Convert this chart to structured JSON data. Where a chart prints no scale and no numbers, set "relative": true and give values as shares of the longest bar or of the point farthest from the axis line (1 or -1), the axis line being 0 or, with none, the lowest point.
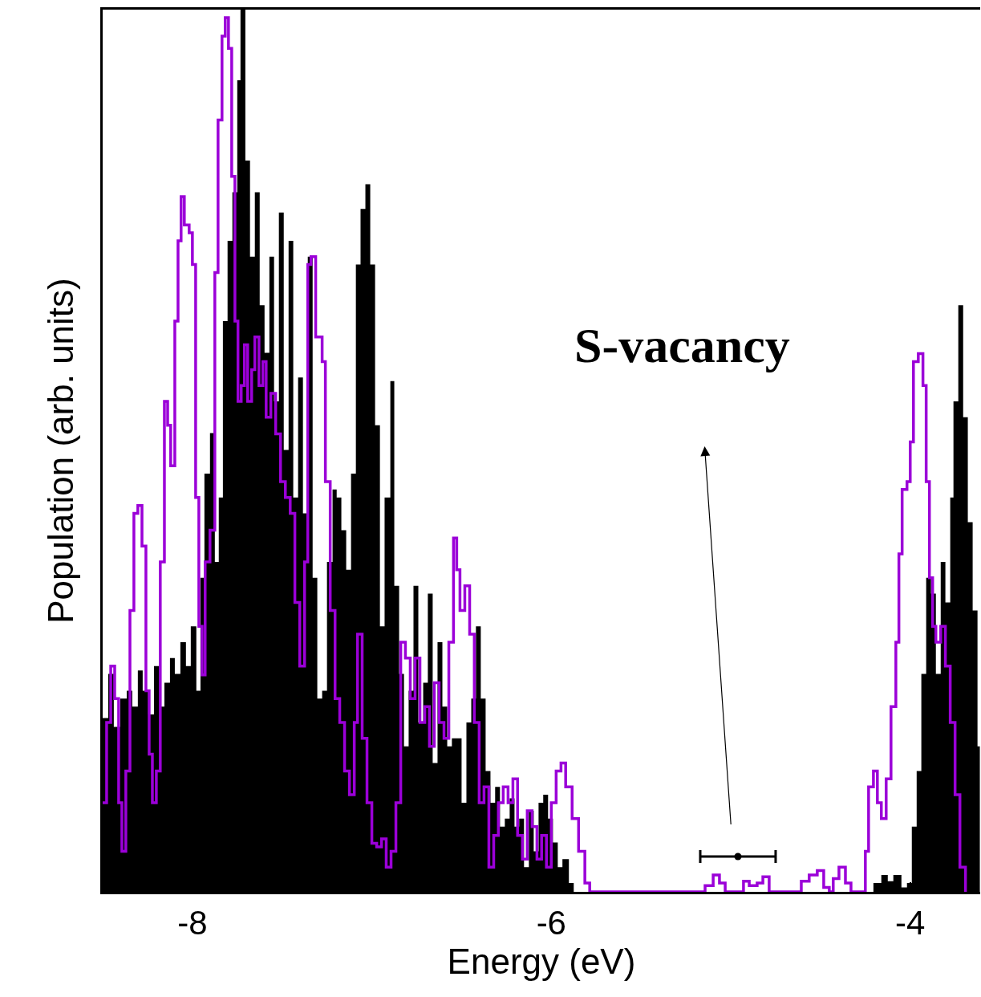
{
  "chart_data": {
    "type": "area",
    "xlabel": "Energy (eV)",
    "ylabel": "Population (arb. units)",
    "relative": true,
    "xlim": [
      -8.5,
      -3.61
    ],
    "xticks": [
      -8,
      -6,
      -4
    ],
    "annotations": [
      "S-vacancy"
    ],
    "series": [
      {
        "color": "#000000",
        "x": [
          -8.5,
          -8.469,
          -8.438,
          -8.402,
          -8.366,
          -8.335,
          -8.304,
          -8.277,
          -8.246,
          -8.214,
          -8.179,
          -8.156,
          -8.125,
          -8.098,
          -8.067,
          -8.036,
          -8.009,
          -7.978,
          -7.955,
          -7.933,
          -7.902,
          -7.875,
          -7.853,
          -7.83,
          -7.804,
          -7.777,
          -7.75,
          -7.732,
          -7.705,
          -7.679,
          -7.652,
          -7.625,
          -7.598,
          -7.571,
          -7.545,
          -7.518,
          -7.491,
          -7.464,
          -7.438,
          -7.411,
          -7.384,
          -7.357,
          -7.33,
          -7.304,
          -7.277,
          -7.25,
          -7.219,
          -7.196,
          -7.17,
          -7.143,
          -7.116,
          -7.089,
          -7.063,
          -7.036,
          -7.009,
          -6.982,
          -6.955,
          -6.929,
          -6.897,
          -6.875,
          -6.848,
          -6.821,
          -6.795,
          -6.768,
          -6.741,
          -6.714,
          -6.688,
          -6.661,
          -6.634,
          -6.607,
          -6.58,
          -6.554,
          -6.527,
          -6.5,
          -6.473,
          -6.446,
          -6.42,
          -6.393,
          -6.366,
          -6.339,
          -6.313,
          -6.286,
          -6.259,
          -6.232,
          -6.205,
          -6.179,
          -6.152,
          -6.125,
          -6.098,
          -6.071,
          -6.045,
          -6.018,
          -5.991,
          -5.964,
          -5.938,
          -5.902,
          -5.875,
          -4.272,
          -4.205,
          -4.161,
          -4.125,
          -4.094,
          -4.049,
          -4.018,
          -3.991,
          -3.964,
          -3.938,
          -3.911,
          -3.884,
          -3.857,
          -3.83,
          -3.804,
          -3.777,
          -3.759,
          -3.732,
          -3.705,
          -3.679,
          -3.652,
          -3.625,
          -3.612
        ],
        "values": [
          0.197,
          0.247,
          0.187,
          0.219,
          0.228,
          0.21,
          0.251,
          0.228,
          0.201,
          0.256,
          0.21,
          0.237,
          0.265,
          0.247,
          0.283,
          0.256,
          0.301,
          0.228,
          0.356,
          0.474,
          0.52,
          0.374,
          0.447,
          0.647,
          0.738,
          0.793,
          0.92,
          1.0,
          0.829,
          0.72,
          0.793,
          0.665,
          0.611,
          0.72,
          0.556,
          0.77,
          0.501,
          0.738,
          0.447,
          0.583,
          0.429,
          0.72,
          0.356,
          0.219,
          0.228,
          0.374,
          0.456,
          0.447,
          0.41,
          0.365,
          0.474,
          0.711,
          0.774,
          0.802,
          0.711,
          0.529,
          0.301,
          0.447,
          0.579,
          0.347,
          0.247,
          0.165,
          0.228,
          0.347,
          0.192,
          0.237,
          0.338,
          0.146,
          0.283,
          0.21,
          0.165,
          0.174,
          0.174,
          0.101,
          0.192,
          0.219,
          0.301,
          0.219,
          0.137,
          0.101,
          0.119,
          0.074,
          0.083,
          0.106,
          0.074,
          0.083,
          0.028,
          0.092,
          0.046,
          0.101,
          0.11,
          0.083,
          0.056,
          0.028,
          0.037,
          0.01,
          0,
          0,
          0.01,
          0.019,
          0.012,
          0.019,
          0.005,
          0.01,
          0.074,
          0.137,
          0.247,
          0.356,
          0.338,
          0.247,
          0.374,
          0.328,
          0.447,
          0.556,
          0.665,
          0.538,
          0.419,
          0.319,
          0.165,
          0.156
        ]
      },
      {
        "type": "step",
        "color": "#9b00d8",
        "x": [
          -8.5,
          -8.478,
          -8.455,
          -8.433,
          -8.411,
          -8.393,
          -8.371,
          -8.348,
          -8.326,
          -8.304,
          -8.281,
          -8.259,
          -8.241,
          -8.223,
          -8.201,
          -8.179,
          -8.156,
          -8.138,
          -8.121,
          -8.098,
          -8.08,
          -8.063,
          -8.045,
          -8.018,
          -8.0,
          -7.982,
          -7.964,
          -7.946,
          -7.929,
          -7.902,
          -7.875,
          -7.857,
          -7.835,
          -7.817,
          -7.799,
          -7.781,
          -7.763,
          -7.746,
          -7.728,
          -7.71,
          -7.692,
          -7.67,
          -7.652,
          -7.629,
          -7.607,
          -7.589,
          -7.563,
          -7.536,
          -7.509,
          -7.482,
          -7.455,
          -7.429,
          -7.402,
          -7.375,
          -7.357,
          -7.339,
          -7.313,
          -7.277,
          -7.259,
          -7.232,
          -7.205,
          -7.179,
          -7.152,
          -7.125,
          -7.098,
          -7.08,
          -7.054,
          -7.027,
          -7.0,
          -6.973,
          -6.946,
          -6.92,
          -6.893,
          -6.866,
          -6.839,
          -6.813,
          -6.786,
          -6.759,
          -6.732,
          -6.705,
          -6.679,
          -6.652,
          -6.625,
          -6.598,
          -6.571,
          -6.545,
          -6.527,
          -6.509,
          -6.482,
          -6.455,
          -6.429,
          -6.402,
          -6.375,
          -6.348,
          -6.321,
          -6.295,
          -6.268,
          -6.241,
          -6.214,
          -6.188,
          -6.161,
          -6.134,
          -6.107,
          -6.08,
          -6.054,
          -6.027,
          -6.0,
          -5.973,
          -5.946,
          -5.92,
          -5.884,
          -5.848,
          -5.813,
          -5.786,
          -5.165,
          -5.143,
          -5.098,
          -5.063,
          -5.031,
          -4.964,
          -4.929,
          -4.897,
          -4.853,
          -4.821,
          -4.786,
          -4.652,
          -4.607,
          -4.563,
          -4.518,
          -4.482,
          -4.451,
          -4.429,
          -4.397,
          -4.361,
          -4.33,
          -4.272,
          -4.25,
          -4.232,
          -4.205,
          -4.183,
          -4.161,
          -4.134,
          -4.107,
          -4.08,
          -4.063,
          -4.045,
          -4.018,
          -4.0,
          -3.982,
          -3.955,
          -3.929,
          -3.911,
          -3.893,
          -3.875,
          -3.857,
          -3.83,
          -3.804,
          -3.777,
          -3.75,
          -3.723,
          -3.692
        ],
        "values": [
          0.101,
          0.192,
          0.256,
          0.219,
          0.101,
          0.046,
          0.137,
          0.319,
          0.429,
          0.438,
          0.392,
          0.228,
          0.156,
          0.101,
          0.137,
          0.374,
          0.556,
          0.529,
          0.483,
          0.647,
          0.738,
          0.788,
          0.756,
          0.747,
          0.711,
          0.447,
          0.301,
          0.246,
          0.374,
          0.41,
          0.702,
          0.875,
          0.97,
          0.991,
          0.956,
          0.811,
          0.647,
          0.556,
          0.574,
          0.62,
          0.556,
          0.592,
          0.629,
          0.574,
          0.601,
          0.538,
          0.565,
          0.519,
          0.465,
          0.447,
          0.429,
          0.328,
          0.256,
          0.374,
          0.711,
          0.72,
          0.629,
          0.601,
          0.465,
          0.319,
          0.219,
          0.192,
          0.137,
          0.11,
          0.192,
          0.292,
          0.174,
          0.101,
          0.055,
          0.051,
          0.06,
          0.028,
          0.046,
          0.101,
          0.283,
          0.265,
          0.219,
          0.265,
          0.192,
          0.21,
          0.165,
          0.237,
          0.192,
          0.174,
          0.283,
          0.401,
          0.365,
          0.319,
          0.347,
          0.292,
          0.192,
          0.101,
          0.119,
          0.028,
          0.064,
          0.101,
          0.119,
          0.101,
          0.128,
          0.064,
          0.037,
          0.092,
          0.074,
          0.037,
          0.064,
          0.028,
          0.101,
          0.137,
          0.146,
          0.119,
          0.083,
          0.046,
          0.01,
          0,
          0,
          0.007,
          0.019,
          0.01,
          0,
          0,
          0.012,
          0.007,
          0.01,
          0.017,
          0,
          0,
          0.012,
          0.019,
          0.024,
          0.005,
          0,
          0.015,
          0.028,
          0.01,
          0,
          0,
          0.046,
          0.119,
          0.137,
          0.101,
          0.083,
          0.128,
          0.21,
          0.283,
          0.383,
          0.456,
          0.465,
          0.51,
          0.601,
          0.61,
          0.574,
          0.465,
          0.356,
          0.301,
          0.283,
          0.301,
          0.256,
          0.192,
          0.11,
          0.028,
          0
        ]
      },
      {
        "type": "scatter",
        "color": "#000000",
        "x": [
          -4.96
        ],
        "values": [
          0.04
        ],
        "xerrors": [
          0.21
        ]
      }
    ]
  }
}
